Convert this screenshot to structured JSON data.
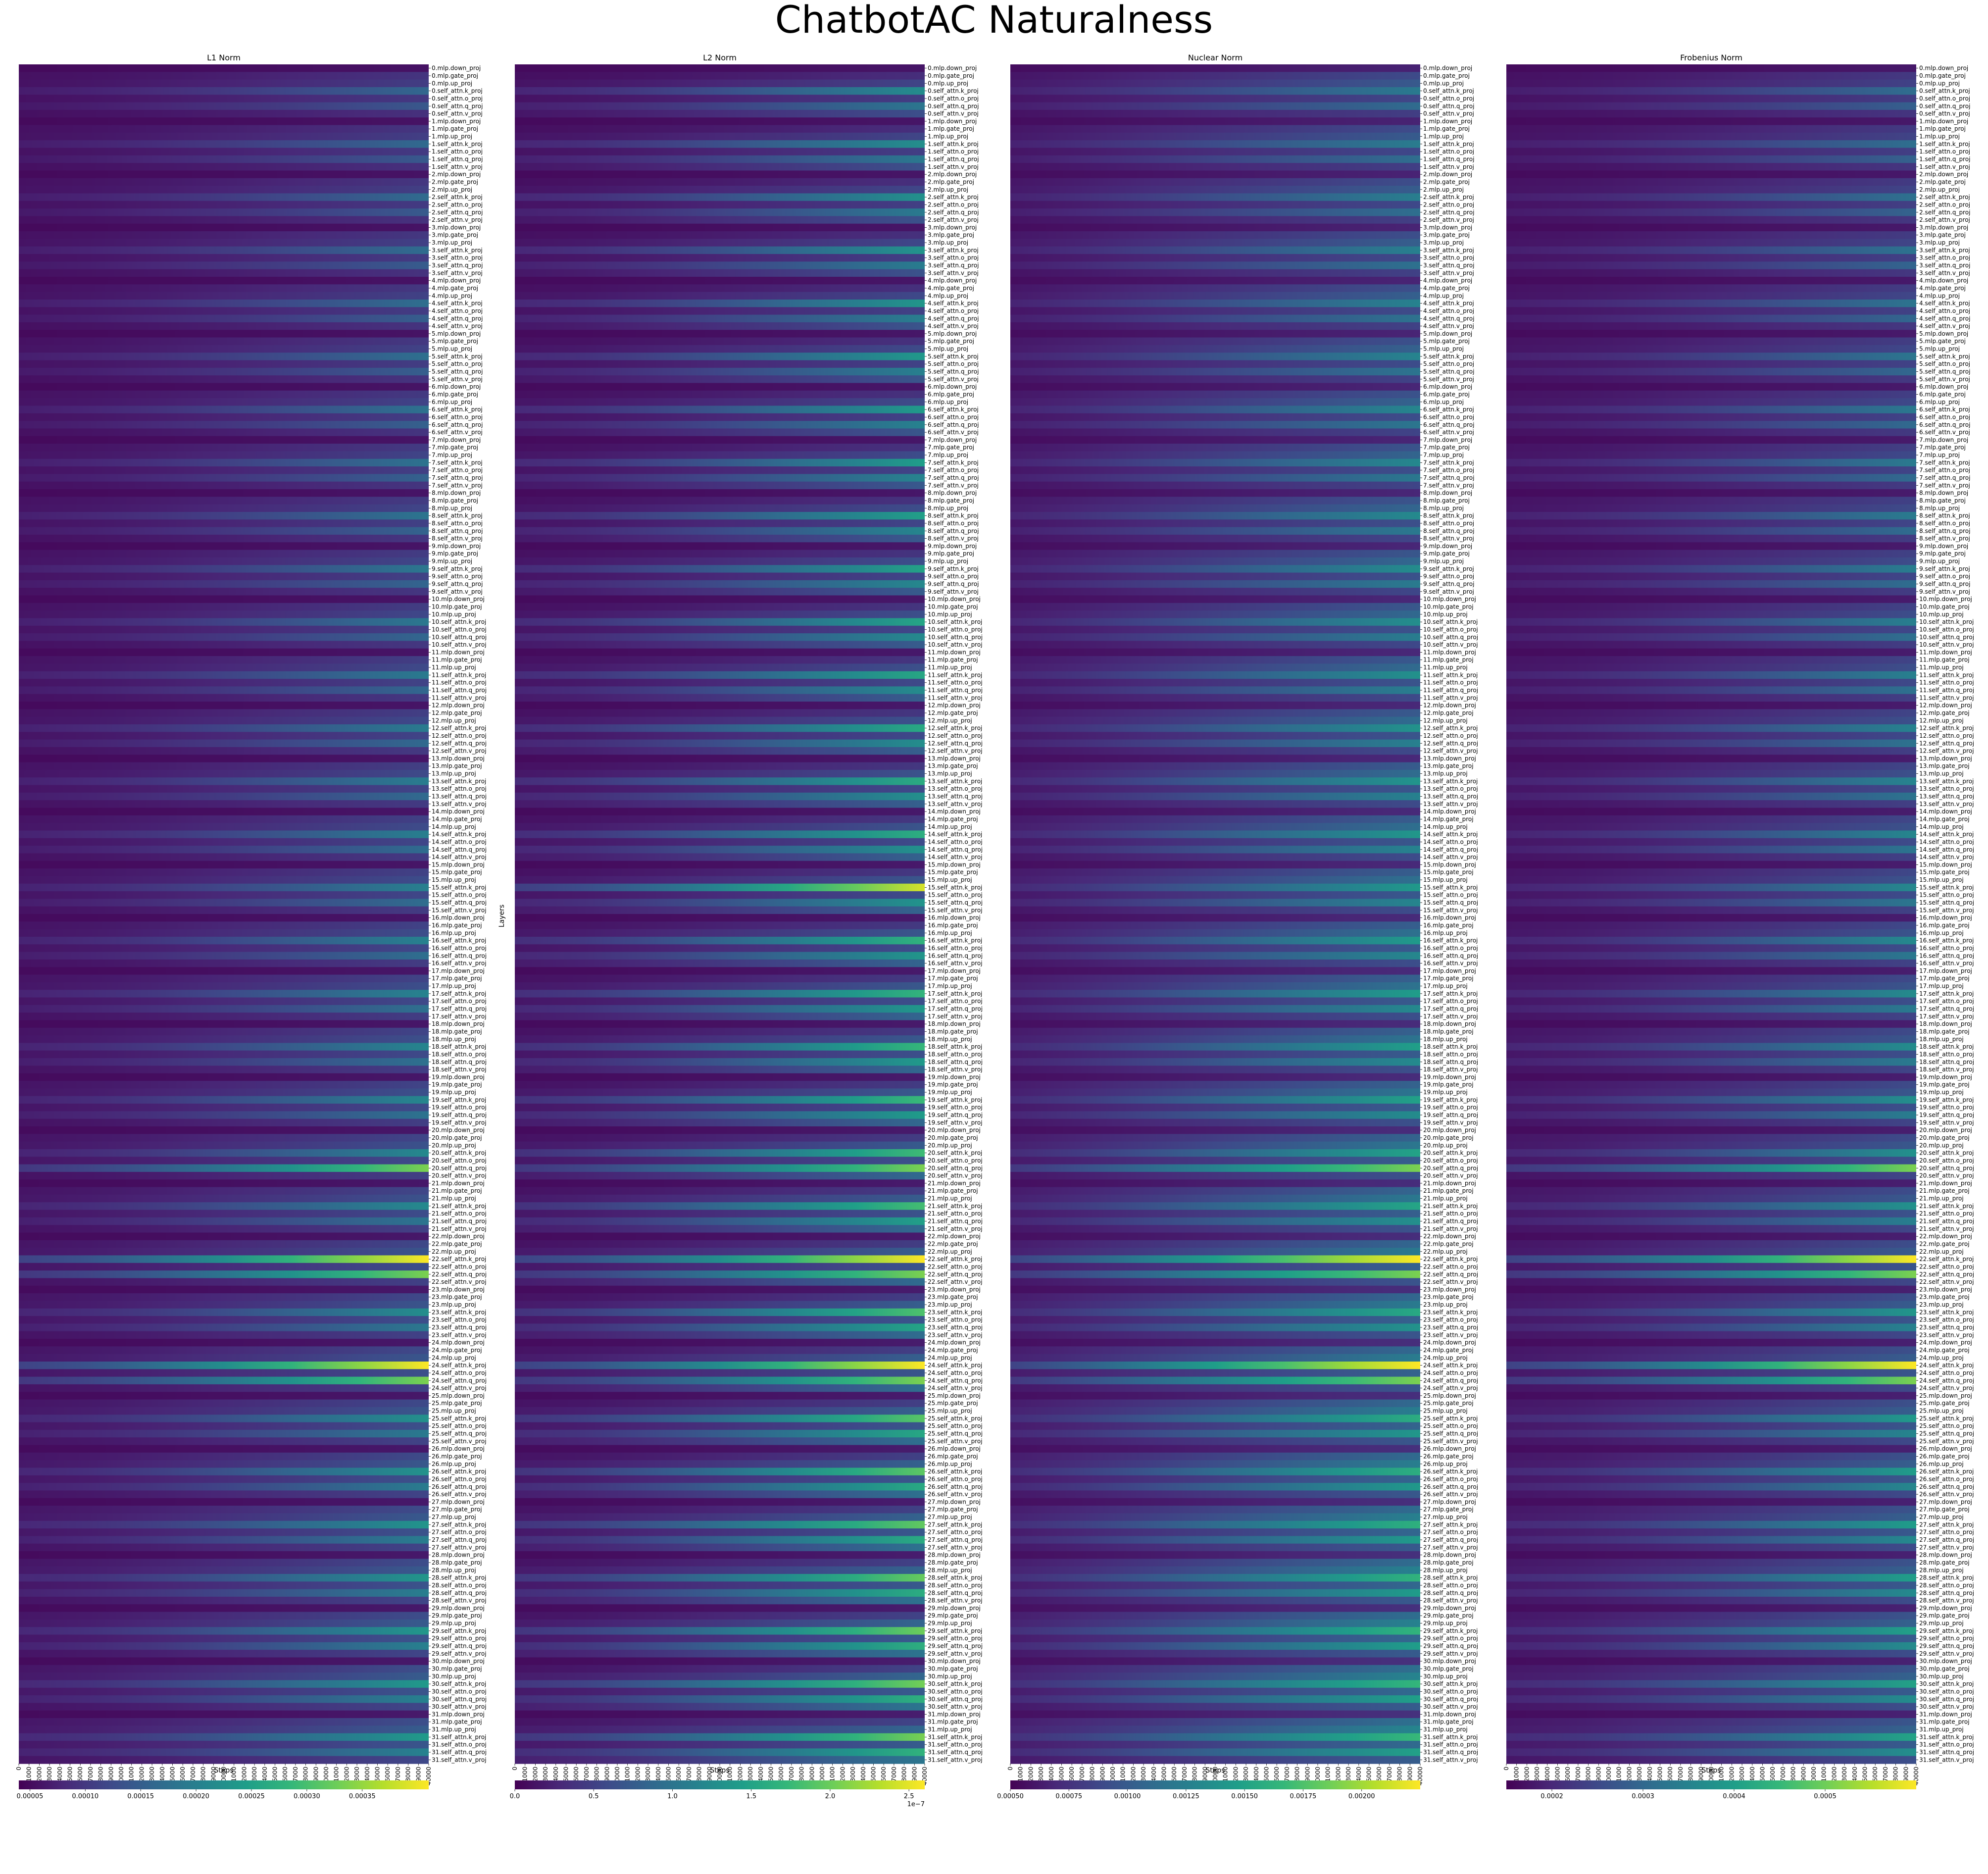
{
  "figure": {
    "title": "ChatbotAC Naturalness",
    "y_axis_label": "Layers"
  },
  "chart_data": [
    {
      "type": "heatmap",
      "title": "L1 Norm",
      "xlabel": "Steps",
      "ylabel": "Layers",
      "colormap": "viridis",
      "colorbar": {
        "ticks": [
          5e-05,
          0.0001,
          0.00015,
          0.0002,
          0.00025,
          0.0003,
          0.00035
        ],
        "tick_labels": [
          "0.00005",
          "0.00010",
          "0.00015",
          "0.00020",
          "0.00025",
          "0.00030",
          "0.00035"
        ],
        "range": [
          4e-05,
          0.00041
        ],
        "offset_label": ""
      },
      "value_range": [
        4e-05,
        0.00041
      ],
      "x_range": [
        0,
        40000
      ]
    },
    {
      "type": "heatmap",
      "title": "L2 Norm",
      "xlabel": "Steps",
      "ylabel": "Layers",
      "colormap": "viridis",
      "colorbar": {
        "ticks": [
          0.0,
          0.5,
          1.0,
          1.5,
          2.0,
          2.5
        ],
        "tick_labels": [
          "0.0",
          "0.5",
          "1.0",
          "1.5",
          "2.0",
          "2.5"
        ],
        "range": [
          0,
          2.6
        ],
        "offset_label": "1e−7"
      },
      "value_range": [
        0,
        2.6
      ],
      "x_range": [
        0,
        40000
      ]
    },
    {
      "type": "heatmap",
      "title": "Nuclear Norm",
      "xlabel": "Steps",
      "ylabel": "Layers",
      "colormap": "viridis",
      "colorbar": {
        "ticks": [
          0.0005,
          0.00075,
          0.001,
          0.00125,
          0.0015,
          0.00175,
          0.002
        ],
        "tick_labels": [
          "0.00050",
          "0.00075",
          "0.00100",
          "0.00125",
          "0.00150",
          "0.00175",
          "0.00200"
        ],
        "range": [
          0.0005,
          0.00225
        ],
        "offset_label": ""
      },
      "value_range": [
        0.0005,
        0.00225
      ],
      "x_range": [
        0,
        40000
      ]
    },
    {
      "type": "heatmap",
      "title": "Frobenius Norm",
      "xlabel": "Steps",
      "ylabel": "Layers",
      "colormap": "viridis",
      "colorbar": {
        "ticks": [
          0.0002,
          0.0003,
          0.0004,
          0.0005
        ],
        "tick_labels": [
          "0.0002",
          "0.0003",
          "0.0004",
          "0.0005"
        ],
        "range": [
          0.00015,
          0.0006
        ],
        "offset_label": ""
      },
      "value_range": [
        0.00015,
        0.0006
      ],
      "x_range": [
        0,
        40000
      ]
    }
  ],
  "layers": {
    "count": 32,
    "modules": [
      "mlp.down_proj",
      "mlp.gate_proj",
      "mlp.up_proj",
      "self_attn.k_proj",
      "self_attn.o_proj",
      "self_attn.q_proj",
      "self_attn.v_proj"
    ]
  },
  "x_ticks": [
    0,
    1000,
    2000,
    3000,
    4000,
    5000,
    6000,
    7000,
    8000,
    9000,
    10000,
    11000,
    12000,
    13000,
    14000,
    15000,
    16000,
    17000,
    18000,
    19000,
    20000,
    21000,
    22000,
    23000,
    24000,
    25000,
    26000,
    27000,
    28000,
    29000,
    30000,
    31000,
    32000,
    33000,
    34000,
    35000,
    36000,
    37000,
    38000,
    39000,
    40000
  ],
  "colors": {
    "colormap_stops": [
      "#440154",
      "#482878",
      "#3e4989",
      "#31688e",
      "#26828e",
      "#1f9e89",
      "#35b779",
      "#6ece58",
      "#b5de2b",
      "#fde725"
    ]
  }
}
